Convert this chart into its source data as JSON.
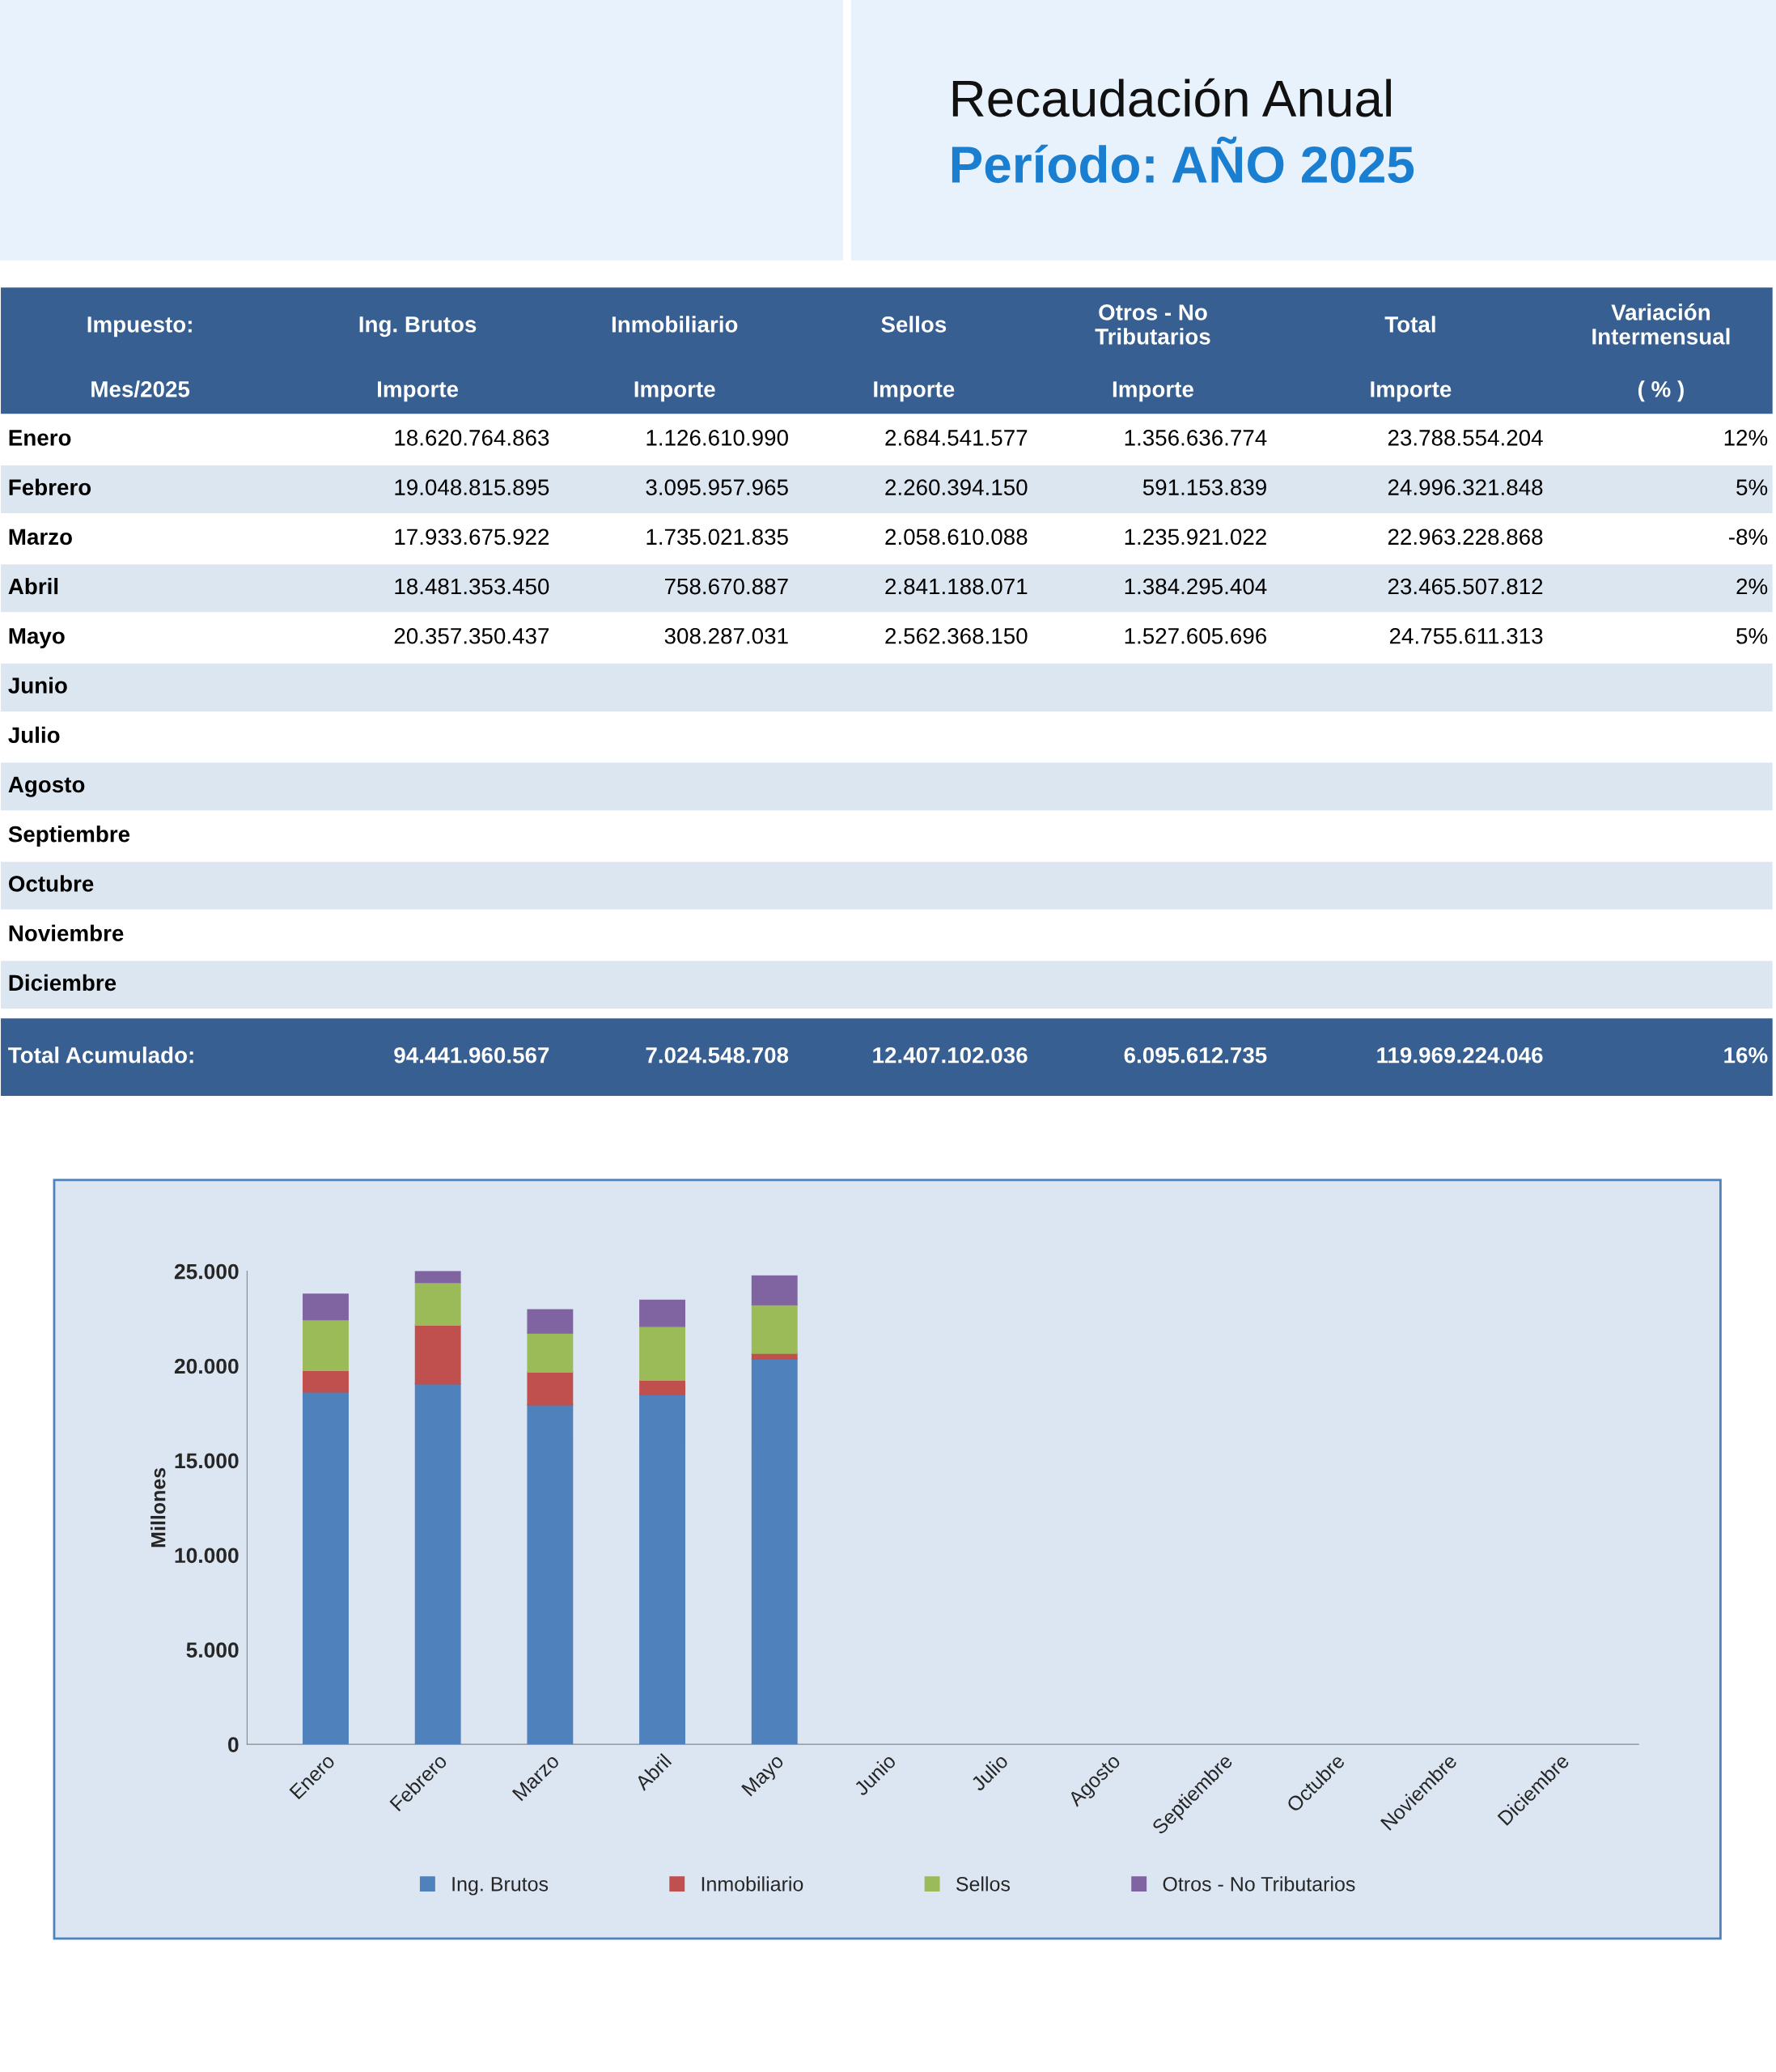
{
  "chart_data": [
    {
      "type": "other",
      "title": "Recaudación Anual",
      "subtitle": "Período: AÑO 2025",
      "categories": [
        "Enero",
        "Febrero",
        "Marzo",
        "Abril",
        "Mayo",
        "Junio",
        "Julio",
        "Agosto",
        "Septiembre",
        "Octubre",
        "Noviembre",
        "Diciembre"
      ],
      "annotations": [
        "Impuesto:",
        "Ing. Brutos",
        "Inmobiliario",
        "Sellos",
        "Otros - No Tributarios",
        "Total",
        "Variación Intermensual",
        "Mes/2025",
        "Importe",
        "Importe",
        "Importe",
        "Importe",
        "Importe",
        "( % )",
        "18.620.764.863",
        "1.126.610.990",
        "2.684.541.577",
        "1.356.636.774",
        "23.788.554.204",
        "12%",
        "19.048.815.895",
        "3.095.957.965",
        "2.260.394.150",
        "591.153.839",
        "24.996.321.848",
        "5%",
        "17.933.675.922",
        "1.735.021.835",
        "2.058.610.088",
        "1.235.921.022",
        "22.963.228.868",
        "-8%",
        "18.481.353.450",
        "758.670.887",
        "2.841.188.071",
        "1.384.295.404",
        "23.465.507.812",
        "2%",
        "20.357.350.437",
        "308.287.031",
        "2.562.368.150",
        "1.527.605.696",
        "24.755.611.313",
        "5%",
        "Total Acumulado:",
        "94.441.960.567",
        "7.024.548.708",
        "12.407.102.036",
        "6.095.612.735",
        "119.969.224.046",
        "16%"
      ]
    },
    {
      "type": "bar",
      "stacked": true,
      "ylabel": "Millones",
      "categories": [
        "Enero",
        "Febrero",
        "Marzo",
        "Abril",
        "Mayo",
        "Junio",
        "Julio",
        "Agosto",
        "Septiembre",
        "Octubre",
        "Noviembre",
        "Diciembre"
      ],
      "series": [
        {
          "name": "Ing. Brutos",
          "color": "#4f81bd",
          "values": [
            18621,
            19049,
            17934,
            18481,
            20357,
            null,
            null,
            null,
            null,
            null,
            null,
            null
          ]
        },
        {
          "name": "Inmobiliario",
          "color": "#c0504d",
          "values": [
            1127,
            3096,
            1735,
            759,
            308,
            null,
            null,
            null,
            null,
            null,
            null,
            null
          ]
        },
        {
          "name": "Sellos",
          "color": "#9bbb59",
          "values": [
            2685,
            2260,
            2059,
            2841,
            2562,
            null,
            null,
            null,
            null,
            null,
            null,
            null
          ]
        },
        {
          "name": "Otros - No Tributarios",
          "color": "#8064a2",
          "values": [
            1357,
            591,
            1236,
            1384,
            1528,
            null,
            null,
            null,
            null,
            null,
            null,
            null
          ]
        }
      ],
      "ylim": [
        0,
        25000
      ],
      "yticks": [
        {
          "value": 0,
          "label": "0"
        },
        {
          "value": 5000,
          "label": "5.000"
        },
        {
          "value": 10000,
          "label": "10.000"
        },
        {
          "value": 15000,
          "label": "15.000"
        },
        {
          "value": 20000,
          "label": "20.000"
        },
        {
          "value": 25000,
          "label": "25.000"
        }
      ],
      "grid": false,
      "legend": "bottom"
    }
  ]
}
